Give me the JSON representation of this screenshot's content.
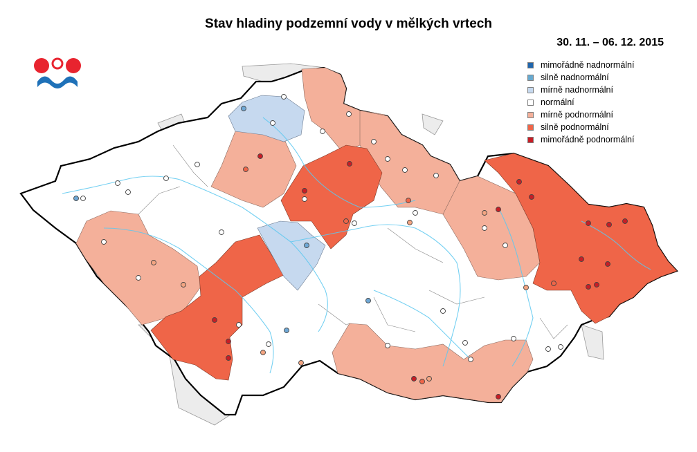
{
  "title": "Stav hladiny podzemní vody v mělkých vrtech",
  "period": "30. 11. – 06. 12. 2015",
  "logo": {
    "icon": "chmi-logo-icon",
    "colors": {
      "red": "#e8242f",
      "blue": "#1f71b8"
    }
  },
  "legend": {
    "items": [
      {
        "label": "mimořádně nadnormální",
        "color": "#2166ac"
      },
      {
        "label": "silně nadnormální",
        "color": "#67a9cf"
      },
      {
        "label": "mírně nadnormální",
        "color": "#c6d9ef"
      },
      {
        "label": "normální",
        "color": "#ffffff"
      },
      {
        "label": "mírně podnormální",
        "color": "#f4b09a"
      },
      {
        "label": "silně podnormální",
        "color": "#ef6548"
      },
      {
        "label": "mimořádně podnormální",
        "color": "#c81d25"
      }
    ]
  },
  "map": {
    "background_outside": "#ececec",
    "river_color": "#5cc8f0",
    "border_color": "#000000"
  }
}
